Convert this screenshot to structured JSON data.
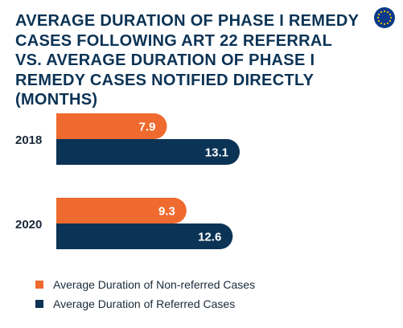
{
  "chart_data": {
    "type": "bar",
    "orientation": "horizontal",
    "title": "AVERAGE DURATION OF PHASE I REMEDY CASES FOLLOWING ART 22 REFERRAL VS. AVERAGE DURATION OF PHASE I REMEDY CASES NOTIFIED DIRECTLY (MONTHS)",
    "categories": [
      "2018",
      "2020"
    ],
    "series": [
      {
        "name": "Average Duration of Non-referred Cases",
        "values": [
          7.9,
          9.3
        ],
        "labels": [
          "7.9",
          "9.3"
        ],
        "color": "#ef6a2e"
      },
      {
        "name": "Average Duration of Referred Cases",
        "values": [
          13.1,
          12.6
        ],
        "labels": [
          "13.1",
          "12.6"
        ],
        "color": "#0b3355"
      }
    ],
    "xlim": [
      0,
      13.1
    ],
    "grid": false,
    "legend_position": "bottom-left"
  },
  "logo": {
    "icon": "eu-flag-icon",
    "background": "#0b3a8c",
    "stars": "#f5c400"
  }
}
